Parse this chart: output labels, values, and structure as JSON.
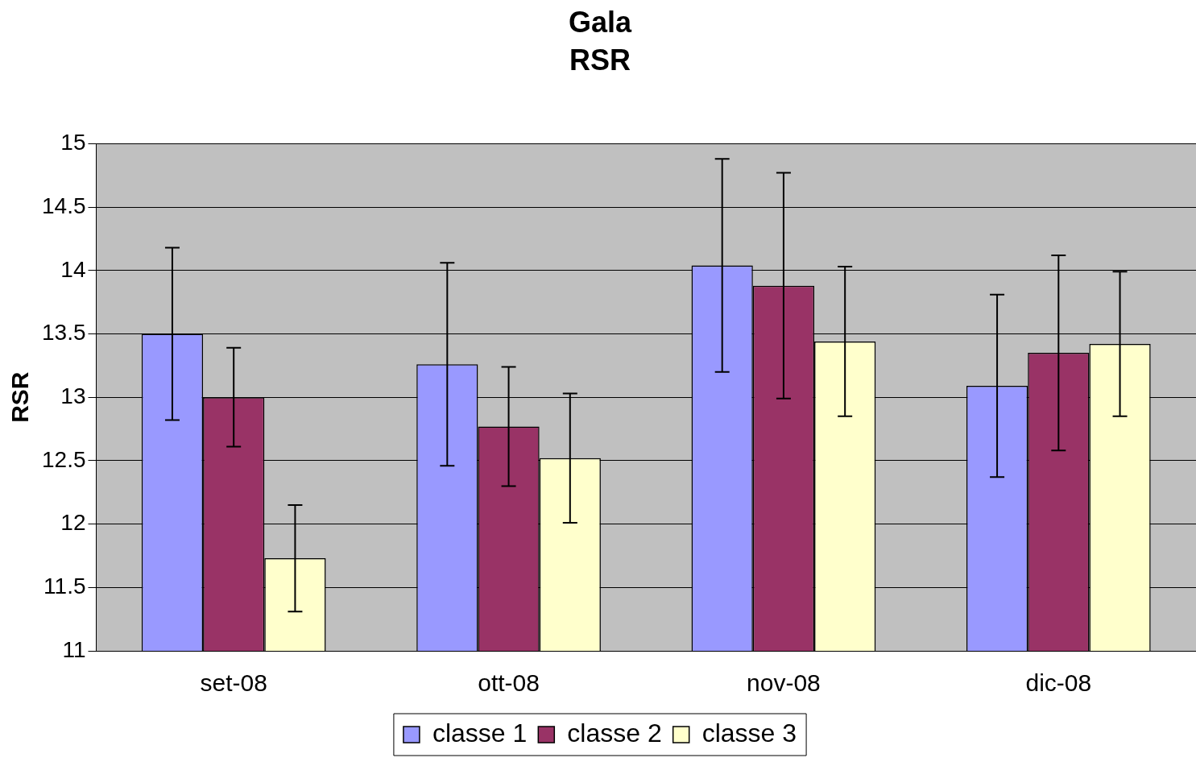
{
  "chart_data": {
    "type": "bar",
    "title": "Gala",
    "subtitle": "RSR",
    "ylabel": "RSR",
    "categories": [
      "set-08",
      "ott-08",
      "nov-08",
      "dic-08"
    ],
    "series": [
      {
        "name": "classe 1",
        "color": "#9999ff",
        "values": [
          13.5,
          13.26,
          14.04,
          13.09
        ],
        "errors": [
          0.68,
          0.8,
          0.84,
          0.72
        ]
      },
      {
        "name": "classe 2",
        "color": "#993366",
        "values": [
          13.0,
          12.77,
          13.88,
          13.35
        ],
        "errors": [
          0.39,
          0.47,
          0.89,
          0.77
        ]
      },
      {
        "name": "classe 3",
        "color": "#ffffcc",
        "values": [
          11.73,
          12.52,
          13.44,
          13.42
        ],
        "errors": [
          0.42,
          0.51,
          0.59,
          0.57
        ]
      }
    ],
    "ylim": [
      11,
      15
    ],
    "yticks": [
      11,
      11.5,
      12,
      12.5,
      13,
      13.5,
      14,
      14.5,
      15
    ],
    "grid": "y",
    "legend": "bottom"
  }
}
